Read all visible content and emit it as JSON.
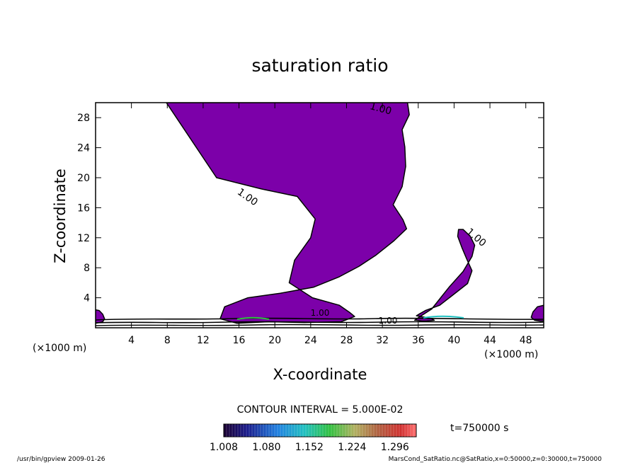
{
  "chart_data": {
    "type": "contour",
    "title": "saturation ratio",
    "xlabel": "X-coordinate",
    "ylabel": "Z-coordinate",
    "x_unit": "(×1000 m)",
    "y_unit": "(×1000 m)",
    "xlim": [
      0,
      50
    ],
    "ylim": [
      0,
      30
    ],
    "x_ticks": [
      4,
      8,
      12,
      16,
      20,
      24,
      28,
      32,
      36,
      40,
      44,
      48
    ],
    "y_ticks": [
      4,
      8,
      12,
      16,
      20,
      24,
      28
    ],
    "contour_label": "1.00",
    "fill_color": "#7c00a9",
    "contour_interval_text": "CONTOUR INTERVAL = 5.000E-02",
    "colorbar": {
      "tick_labels": [
        "1.008",
        "1.080",
        "1.152",
        "1.224",
        "1.296"
      ],
      "min": 1.008,
      "max": 1.332
    },
    "time_label": "t=750000 s",
    "footer_left": "/usr/bin/gpview   2009-01-26",
    "footer_right": "MarsCond_SatRatio.nc@SatRatio,x=0:50000,z=0:30000,t=750000",
    "regions": [
      {
        "name": "main-plume",
        "x": [
          7.9,
          13.5,
          18.5,
          22.5,
          24.5,
          24.0,
          22.2,
          21.6,
          24.2,
          27.2,
          28.4,
          28.9,
          27.4,
          23.3,
          19.3,
          15.8,
          13.9,
          14.4,
          17.0,
          20.6,
          24.3,
          27.2,
          29.4,
          31.3,
          33.3,
          34.7,
          34.3,
          33.2,
          34.2,
          34.6,
          34.5,
          34.2,
          35.0,
          34.8,
          34.4,
          34.0,
          33.8,
          32.8,
          30.0,
          26.0,
          20.0,
          14.8,
          7.9
        ],
        "y": [
          30.0,
          20.0,
          18.5,
          17.5,
          14.5,
          12.0,
          9.0,
          6.0,
          4.0,
          3.0,
          2.0,
          1.5,
          0.8,
          0.7,
          0.8,
          0.6,
          1.2,
          2.8,
          4.0,
          4.6,
          5.4,
          6.8,
          8.2,
          9.7,
          11.6,
          13.2,
          14.4,
          16.4,
          18.8,
          21.5,
          24.1,
          26.4,
          28.4,
          30.0,
          30.0,
          30.0,
          30.0,
          30.0,
          30.0,
          30.0,
          30.0,
          30.0,
          30.0
        ]
      },
      {
        "name": "right-plume",
        "x": [
          35.6,
          36.2,
          37.5,
          38.5,
          39.5,
          41.0,
          42.0,
          42.3,
          41.8,
          41.0,
          40.5,
          40.4,
          40.9,
          41.4,
          42.0,
          41.5,
          39.9,
          38.4,
          36.8,
          36.2,
          35.8,
          36.8,
          37.5,
          37.8,
          36.9,
          36.4,
          35.8,
          35.6
        ],
        "y": [
          1.0,
          1.5,
          2.5,
          4.0,
          5.5,
          7.5,
          9.5,
          11.0,
          12.2,
          13.1,
          13.1,
          12.2,
          10.6,
          9.2,
          7.6,
          5.9,
          4.4,
          3.0,
          2.3,
          1.9,
          1.6,
          1.4,
          1.2,
          1.0,
          0.9,
          0.9,
          1.0,
          1.0
        ]
      },
      {
        "name": "left-edge-cell",
        "x": [
          0.0,
          0.4,
          0.8,
          1.0,
          0.8,
          0.4,
          0.0,
          0.0
        ],
        "y": [
          2.4,
          2.3,
          1.8,
          1.2,
          0.8,
          0.7,
          0.6,
          2.4
        ]
      },
      {
        "name": "right-edge-cell",
        "x": [
          50.0,
          49.3,
          48.8,
          48.6,
          49.0,
          49.6,
          50.0,
          50.0
        ],
        "y": [
          3.0,
          2.8,
          2.1,
          1.4,
          1.0,
          0.9,
          0.9,
          3.0
        ]
      }
    ]
  }
}
